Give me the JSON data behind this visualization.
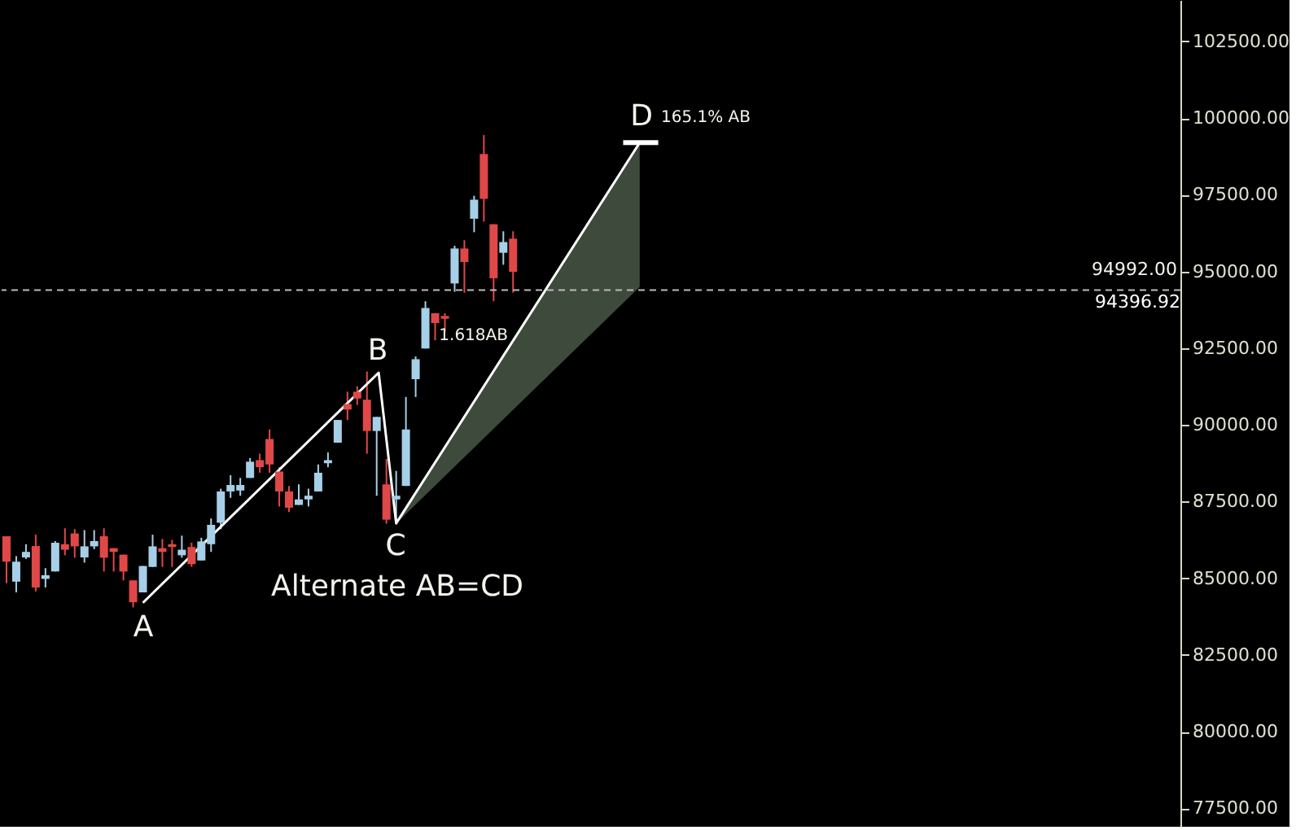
{
  "chart_data": {
    "type": "candlestick",
    "categories": [
      null,
      null,
      null,
      null,
      null,
      null,
      null,
      null,
      null,
      null,
      null,
      null,
      null,
      null,
      null,
      null,
      null,
      null,
      null,
      null,
      null,
      null,
      null,
      null,
      null,
      null,
      null,
      null,
      null,
      null,
      null,
      null,
      null,
      null,
      null,
      null,
      null,
      null,
      null,
      null,
      null,
      null,
      null,
      null,
      null,
      null,
      null,
      null,
      null,
      null,
      null,
      null,
      null,
      null,
      null,
      null,
      null,
      null,
      null,
      null,
      null,
      null,
      null,
      null,
      null,
      null,
      null,
      null,
      null,
      null,
      null,
      null,
      null,
      null,
      null,
      null,
      null,
      null,
      null,
      null,
      null,
      null,
      null,
      null,
      null,
      null,
      null,
      null,
      null,
      null,
      null,
      null,
      null,
      null,
      null,
      null,
      null,
      null,
      null,
      null,
      null,
      null,
      null,
      null,
      null,
      null,
      null,
      null,
      null,
      null,
      null,
      null,
      null,
      null,
      null,
      null,
      null,
      null,
      null,
      null,
      null
    ],
    "ohlc": [
      [
        86370,
        86370,
        84840,
        85540
      ],
      [
        84890,
        85720,
        84540,
        85540
      ],
      [
        85680,
        86110,
        85630,
        85860
      ],
      [
        86050,
        86420,
        84570,
        84700
      ],
      [
        84980,
        85330,
        84700,
        85100
      ],
      [
        85220,
        86210,
        85220,
        86160
      ],
      [
        86110,
        86630,
        85750,
        85930
      ],
      [
        86460,
        86600,
        85670,
        86040
      ],
      [
        85680,
        86570,
        85510,
        86040
      ],
      [
        86040,
        86570,
        85950,
        86210
      ],
      [
        86370,
        86630,
        85220,
        85670
      ],
      [
        85980,
        85980,
        85220,
        85860
      ],
      [
        85770,
        85770,
        84930,
        85220
      ],
      [
        84930,
        84930,
        84050,
        84220
      ],
      [
        84540,
        85400,
        84540,
        85400
      ],
      [
        85370,
        86420,
        85370,
        86040
      ],
      [
        85980,
        86280,
        85370,
        85860
      ],
      [
        86110,
        86250,
        85370,
        86020
      ],
      [
        85750,
        86390,
        85670,
        85930
      ],
      [
        86020,
        86160,
        85370,
        85460
      ],
      [
        85580,
        86320,
        85580,
        86200
      ],
      [
        86110,
        86950,
        85860,
        86740
      ],
      [
        86810,
        87920,
        86600,
        87830
      ],
      [
        87830,
        88360,
        87620,
        88040
      ],
      [
        87860,
        88270,
        87690,
        88040
      ],
      [
        88270,
        88920,
        88270,
        88800
      ],
      [
        88850,
        89060,
        88440,
        88620
      ],
      [
        89540,
        89850,
        88440,
        88710
      ],
      [
        88480,
        88620,
        87340,
        87830
      ],
      [
        87830,
        88010,
        87160,
        87300
      ],
      [
        87390,
        88060,
        87390,
        87570
      ],
      [
        87570,
        87920,
        87340,
        87690
      ],
      [
        87830,
        88710,
        87830,
        88440
      ],
      [
        88750,
        89100,
        88620,
        88850
      ],
      [
        89420,
        90160,
        89420,
        90160
      ],
      [
        90680,
        91080,
        90160,
        90500
      ],
      [
        91080,
        91260,
        90650,
        90860
      ],
      [
        90820,
        91740,
        89060,
        89800
      ],
      [
        89800,
        90260,
        87690,
        90260
      ],
      [
        88060,
        88890,
        86780,
        86910
      ],
      [
        87570,
        88500,
        86780,
        87690
      ],
      [
        88010,
        90910,
        88010,
        89850
      ],
      [
        91490,
        92230,
        90910,
        92140
      ],
      [
        92490,
        94030,
        92490,
        93810
      ],
      [
        93640,
        93640,
        92760,
        93320
      ],
      [
        93550,
        93640,
        93020,
        93460
      ],
      [
        94610,
        95840,
        94340,
        95750
      ],
      [
        95750,
        96020,
        94310,
        95310
      ],
      [
        96720,
        97470,
        96280,
        97340
      ],
      [
        98830,
        99450,
        96630,
        97370
      ],
      [
        96540,
        96540,
        94030,
        94780
      ],
      [
        95610,
        96310,
        95220,
        95960
      ],
      [
        96070,
        96310,
        94310,
        94990
      ],
      null,
      null,
      null,
      null,
      null,
      null,
      null,
      null,
      null,
      null,
      null,
      null,
      null,
      null,
      null,
      null,
      null,
      null,
      null,
      null,
      null,
      null,
      null,
      null,
      null,
      null,
      null,
      null,
      null,
      null,
      null,
      null,
      null,
      null,
      null,
      null,
      null,
      null,
      null,
      null,
      null,
      null,
      null,
      null,
      null,
      null,
      null,
      null,
      null,
      null,
      null,
      null,
      null,
      null,
      null,
      null,
      null,
      null,
      null,
      null,
      null,
      null,
      null,
      null,
      null,
      null,
      null,
      null
    ],
    "colors": [
      "#e04848",
      "#a6cfe8",
      "#a6cfe8",
      "#e04848",
      "#a6cfe8",
      "#a6cfe8",
      "#e04848",
      "#e04848",
      "#a6cfe8",
      "#a6cfe8",
      "#e04848",
      "#e04848",
      "#e04848",
      "#e04848",
      "#a6cfe8",
      "#a6cfe8",
      "#e04848",
      "#e04848",
      "#a6cfe8",
      "#e04848",
      "#a6cfe8",
      "#a6cfe8",
      "#a6cfe8",
      "#a6cfe8",
      "#a6cfe8",
      "#a6cfe8",
      "#e04848",
      "#e04848",
      "#e04848",
      "#e04848",
      "#a6cfe8",
      "#a6cfe8",
      "#a6cfe8",
      "#a6cfe8",
      "#a6cfe8",
      "#e04848",
      "#e04848",
      "#e04848",
      "#a6cfe8",
      "#e04848",
      "#a6cfe8",
      "#a6cfe8",
      "#a6cfe8",
      "#a6cfe8",
      "#e04848",
      "#e04848",
      "#a6cfe8",
      "#e04848",
      "#a6cfe8",
      "#e04848",
      "#e04848",
      "#a6cfe8",
      "#e04848",
      null,
      null,
      null,
      null,
      null,
      null,
      null,
      null,
      null,
      null,
      null,
      null,
      null,
      null,
      null,
      null,
      null,
      null,
      null,
      null,
      null,
      null,
      null,
      null,
      null,
      null,
      null,
      null,
      null,
      null,
      null,
      null,
      null,
      null,
      null,
      null,
      null,
      null,
      null,
      null,
      null,
      null,
      null,
      null,
      null,
      null,
      null,
      null,
      null,
      null,
      null,
      null,
      null,
      null,
      null,
      null,
      null,
      null,
      null,
      null,
      null,
      null,
      null,
      null,
      null,
      null,
      null,
      null
    ],
    "ylim": [
      76900,
      103850
    ],
    "yticks": [
      {
        "value": 77500,
        "label": "77500.00"
      },
      {
        "value": 80000,
        "label": "80000.00"
      },
      {
        "value": 82500,
        "label": "82500.00"
      },
      {
        "value": 85000,
        "label": "85000.00"
      },
      {
        "value": 87500,
        "label": "87500.00"
      },
      {
        "value": 90000,
        "label": "90000.00"
      },
      {
        "value": 92500,
        "label": "92500.00"
      },
      {
        "value": 95000,
        "label": "95000.00"
      },
      {
        "value": 97500,
        "label": "97500.00"
      },
      {
        "value": 100000,
        "label": "100000.00"
      },
      {
        "value": 102500,
        "label": "102500.00"
      }
    ],
    "tick_labels": "y",
    "grid": false,
    "ref_lines": [
      {
        "axis": "y",
        "value": 94396.92,
        "label": "94396.92",
        "color": "#bbbbbb",
        "line_style": "dashed"
      }
    ],
    "annotations": [
      "A",
      "B",
      "C",
      "D",
      "165.1% AB",
      "1.618AB",
      "Alternate AB=CD",
      "94992.00"
    ]
  }
}
